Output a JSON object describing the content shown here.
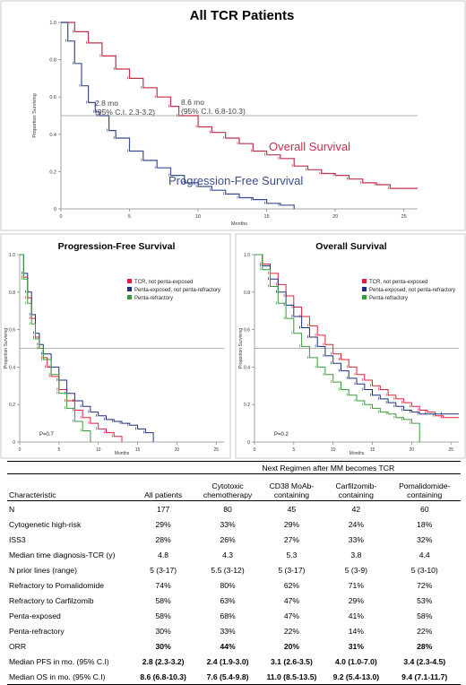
{
  "chart_data": [
    {
      "type": "line",
      "title": "All TCR Patients",
      "xlabel": "Months",
      "ylabel": "Proportion Surviving",
      "xlim": [
        0,
        26
      ],
      "ylim": [
        0,
        1.0
      ],
      "x_ticks": [
        "0",
        "5",
        "10",
        "15",
        "20",
        "25"
      ],
      "y_ticks": [
        "0",
        "0.2",
        "0.4",
        "0.6",
        "0.8",
        "1.0"
      ],
      "reference_line_y": 0.5,
      "annotations": [
        {
          "line1": "2.8 mo",
          "line2": "(95% C.I. 2.3-3.2)"
        },
        {
          "line1": "8.6 mo",
          "line2": "(95% C.I. 6.8-10.3)"
        }
      ],
      "series": [
        {
          "name": "Overall Survival",
          "color": "#c0314b",
          "x": [
            0,
            1,
            2,
            3,
            4,
            5,
            6,
            7,
            8,
            8.6,
            10,
            11,
            12,
            13,
            14,
            15,
            16,
            17,
            18,
            19,
            20,
            21,
            22,
            23,
            24,
            26
          ],
          "y": [
            1.0,
            0.95,
            0.89,
            0.82,
            0.75,
            0.7,
            0.65,
            0.6,
            0.55,
            0.5,
            0.44,
            0.41,
            0.38,
            0.35,
            0.31,
            0.29,
            0.27,
            0.23,
            0.21,
            0.19,
            0.18,
            0.16,
            0.14,
            0.13,
            0.11,
            0.11
          ]
        },
        {
          "name": "Progression-Free Survival",
          "color": "#3b4d8f",
          "x": [
            0,
            0.5,
            1,
            1.5,
            2,
            2.5,
            2.8,
            3.5,
            4,
            5,
            6,
            7,
            8,
            9,
            10,
            11,
            12,
            13,
            14,
            15,
            16,
            17
          ],
          "y": [
            1.0,
            0.9,
            0.78,
            0.66,
            0.57,
            0.52,
            0.5,
            0.42,
            0.38,
            0.31,
            0.26,
            0.22,
            0.18,
            0.14,
            0.12,
            0.1,
            0.08,
            0.06,
            0.05,
            0.03,
            0.02,
            0.0
          ]
        }
      ]
    },
    {
      "type": "line",
      "title": "Progression-Free Survival",
      "xlabel": "Months",
      "ylabel": "Proportion Surviving",
      "xlim": [
        0,
        26
      ],
      "ylim": [
        0,
        1.0
      ],
      "x_ticks": [
        "0",
        "5",
        "10",
        "15",
        "20",
        "25"
      ],
      "y_ticks": [
        "0",
        "0.2",
        "0.4",
        "0.6",
        "0.8",
        "1.0"
      ],
      "reference_line_y": 0.5,
      "p_value": "P=0.7",
      "legend_position": "top-right",
      "series": [
        {
          "name": "TCR, not penta-exposed",
          "color": "#e0203a",
          "x": [
            0,
            0.5,
            1,
            1.5,
            2,
            2.5,
            3,
            3.5,
            4,
            5,
            6,
            7,
            8,
            9,
            10,
            11,
            12,
            13
          ],
          "y": [
            1.0,
            0.88,
            0.77,
            0.66,
            0.56,
            0.5,
            0.45,
            0.4,
            0.35,
            0.28,
            0.22,
            0.17,
            0.13,
            0.1,
            0.07,
            0.05,
            0.03,
            0.0
          ]
        },
        {
          "name": "Penta-exposed, not penta-refractory",
          "color": "#1d2f7a",
          "x": [
            0,
            0.5,
            1,
            1.5,
            2,
            2.5,
            3,
            4,
            5,
            6,
            7,
            8,
            9,
            10,
            11,
            12,
            13,
            14,
            15,
            16,
            17
          ],
          "y": [
            1.0,
            0.9,
            0.8,
            0.68,
            0.58,
            0.52,
            0.47,
            0.4,
            0.33,
            0.26,
            0.22,
            0.19,
            0.16,
            0.14,
            0.12,
            0.11,
            0.1,
            0.09,
            0.07,
            0.05,
            0.0
          ]
        },
        {
          "name": "Penta-refractory",
          "color": "#3a9a3a",
          "x": [
            0,
            0.5,
            1,
            1.5,
            2,
            2.5,
            3,
            4,
            5,
            6,
            7,
            8,
            9
          ],
          "y": [
            1.0,
            0.87,
            0.74,
            0.63,
            0.55,
            0.5,
            0.44,
            0.36,
            0.26,
            0.18,
            0.11,
            0.06,
            0.0
          ]
        }
      ]
    },
    {
      "type": "line",
      "title": "Overall Survival",
      "xlabel": "Months",
      "ylabel": "Proportion Surviving",
      "xlim": [
        0,
        26
      ],
      "ylim": [
        0,
        1.0
      ],
      "x_ticks": [
        "0",
        "5",
        "10",
        "15",
        "20",
        "25"
      ],
      "y_ticks": [
        "0",
        "0.2",
        "0.4",
        "0.6",
        "0.8",
        "1.0"
      ],
      "reference_line_y": 0.5,
      "p_value": "P=0.2",
      "legend_position": "top-right",
      "series": [
        {
          "name": "TCR, not penta-exposed",
          "color": "#e0203a",
          "x": [
            0,
            1,
            2,
            3,
            4,
            5,
            6,
            7,
            8,
            9,
            10,
            11,
            12,
            13,
            14,
            15,
            16,
            17,
            18,
            19,
            20,
            21,
            22,
            23,
            24,
            26
          ],
          "y": [
            1.0,
            0.95,
            0.9,
            0.84,
            0.78,
            0.72,
            0.67,
            0.62,
            0.57,
            0.52,
            0.47,
            0.44,
            0.4,
            0.36,
            0.33,
            0.3,
            0.28,
            0.25,
            0.23,
            0.21,
            0.19,
            0.17,
            0.16,
            0.14,
            0.13,
            0.13
          ]
        },
        {
          "name": "Penta-exposed, not penta-refractory",
          "color": "#1d2f7a",
          "x": [
            0,
            1,
            2,
            3,
            4,
            5,
            6,
            7,
            8,
            9,
            10,
            11,
            12,
            13,
            14,
            15,
            16,
            17,
            18,
            19,
            20,
            21,
            22,
            24,
            26
          ],
          "y": [
            1.0,
            0.94,
            0.87,
            0.8,
            0.73,
            0.67,
            0.61,
            0.56,
            0.51,
            0.46,
            0.42,
            0.38,
            0.34,
            0.31,
            0.28,
            0.25,
            0.23,
            0.21,
            0.19,
            0.17,
            0.16,
            0.15,
            0.15,
            0.15,
            0.15
          ]
        },
        {
          "name": "Penta-refractory",
          "color": "#3a9a3a",
          "x": [
            0,
            1,
            2,
            3,
            4,
            5,
            6,
            7,
            8,
            9,
            10,
            11,
            12,
            13,
            14,
            15,
            16,
            17,
            18,
            19,
            20,
            21
          ],
          "y": [
            1.0,
            0.92,
            0.83,
            0.74,
            0.66,
            0.58,
            0.51,
            0.45,
            0.4,
            0.36,
            0.32,
            0.28,
            0.25,
            0.22,
            0.2,
            0.18,
            0.16,
            0.15,
            0.13,
            0.12,
            0.1,
            0.0
          ]
        }
      ]
    }
  ],
  "table": {
    "group_header": "Next Regimen after MM becomes TCR",
    "columns": [
      "Characteristic",
      "All patients",
      "Cytotoxic chemotherapy",
      "CD38 MoAb-containing",
      "Carfilzomib-containing",
      "Pomalidomide-containing"
    ],
    "column_lines": [
      [
        "Characteristic"
      ],
      [
        "All patients"
      ],
      [
        "Cytotoxic",
        "chemotherapy"
      ],
      [
        "CD38 MoAb-",
        "containing"
      ],
      [
        "Carfilzomib-",
        "containing"
      ],
      [
        "Pomalidomide-",
        "containing"
      ]
    ],
    "rows": [
      {
        "label": "N",
        "values": [
          "177",
          "80",
          "45",
          "42",
          "60"
        ],
        "bold": false
      },
      {
        "label": "Cytogenetic high-risk",
        "values": [
          "29%",
          "33%",
          "29%",
          "24%",
          "18%"
        ],
        "bold": false
      },
      {
        "label": "ISS3",
        "values": [
          "28%",
          "26%",
          "27%",
          "33%",
          "32%"
        ],
        "bold": false
      },
      {
        "label": "Median time diagnosis-TCR (y)",
        "values": [
          "4.8",
          "4.3",
          "5.3",
          "3.8",
          "4.4"
        ],
        "bold": false
      },
      {
        "label": "N prior lines (range)",
        "values": [
          "5 (3-17)",
          "5.5 (3-12)",
          "5 (3-17)",
          "5 (3-9)",
          "5 (3-10)"
        ],
        "bold": false
      },
      {
        "label": "Refractory to Pomalidomide",
        "values": [
          "74%",
          "80%",
          "62%",
          "71%",
          "72%"
        ],
        "bold": false
      },
      {
        "label": "Refractory to Carfilzomib",
        "values": [
          "58%",
          "63%",
          "47%",
          "29%",
          "53%"
        ],
        "bold": false
      },
      {
        "label": "Penta-exposed",
        "values": [
          "58%",
          "68%",
          "47%",
          "41%",
          "58%"
        ],
        "bold": false
      },
      {
        "label": "Penta-refractory",
        "values": [
          "30%",
          "33%",
          "22%",
          "14%",
          "22%"
        ],
        "bold": false
      },
      {
        "label": "ORR",
        "values": [
          "30%",
          "44%",
          "20%",
          "31%",
          "28%"
        ],
        "bold": true
      },
      {
        "label": "Median PFS in mo. (95%  C.I)",
        "values": [
          "2.8 (2.3-3.2)",
          "2.4 (1.9-3.0)",
          "3.1 (2.6-3.5)",
          "4.0 (1.0-7.0)",
          "3.4 (2.3-4.5)"
        ],
        "bold": true
      },
      {
        "label": "Median OS in mo. (95%  C.I)",
        "values": [
          "8.6 (6.8-10.3)",
          "7.6 (5.4-9.8)",
          "11.0 (8.5-13.5)",
          "9.2 (5.4-13.0)",
          "9.4 (7.1-11.7)"
        ],
        "bold": true
      }
    ]
  }
}
